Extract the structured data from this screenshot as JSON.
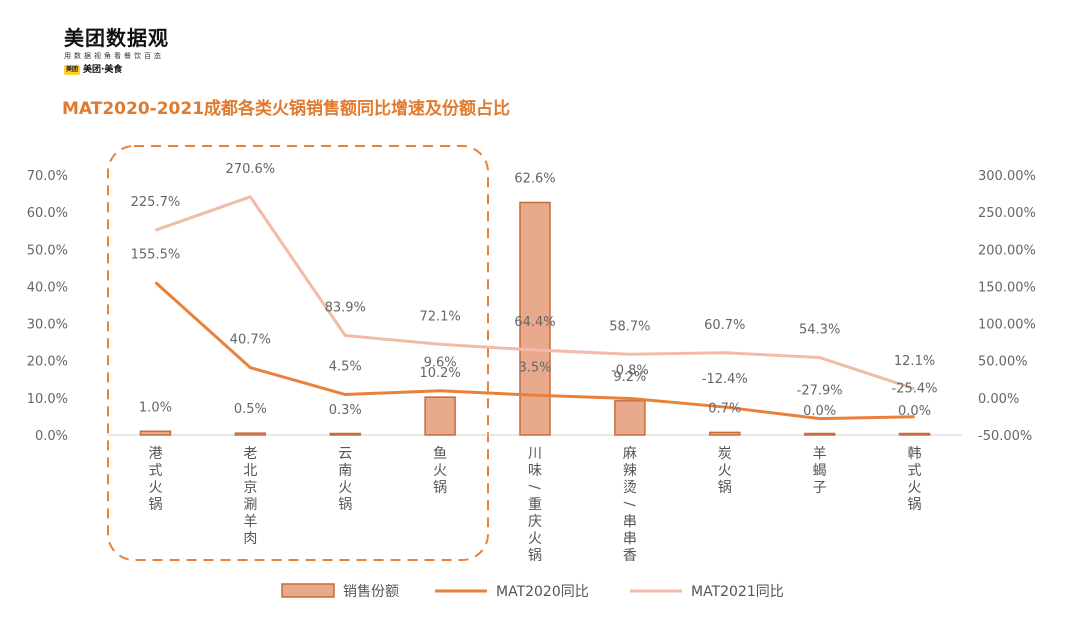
{
  "logo": {
    "title": "美团数据观",
    "subtitle": "用数据视角看餐饮百态",
    "badge": "美团",
    "brand": "美团·美食"
  },
  "chart_title": "MAT2020-2021成都各类火锅销售额同比增速及份额占比",
  "chart_data": {
    "type": "bar",
    "title": "MAT2020-2021成都各类火锅销售额同比增速及份额占比",
    "categories": [
      "港式火锅",
      "老北京涮羊肉",
      "云南火锅",
      "鱼火锅",
      "川味/重庆火锅",
      "麻辣烫/串串香",
      "炭火锅",
      "羊蝎子",
      "韩式火锅"
    ],
    "y_left": {
      "ticks": [
        "0.0%",
        "10.0%",
        "20.0%",
        "30.0%",
        "40.0%",
        "50.0%",
        "60.0%",
        "70.0%"
      ],
      "range": [
        0,
        70
      ]
    },
    "y_right": {
      "ticks": [
        "-50.00%",
        "0.00%",
        "50.00%",
        "100.00%",
        "150.00%",
        "200.00%",
        "250.00%",
        "300.00%"
      ],
      "range": [
        -50,
        300
      ]
    },
    "series": [
      {
        "name": "销售份额",
        "type": "bar",
        "axis": "left",
        "color": "#e8a98c",
        "values": [
          1.0,
          0.5,
          0.3,
          10.2,
          62.6,
          9.2,
          0.7,
          0.0,
          0.0
        ],
        "labels": [
          "1.0%",
          "0.5%",
          "0.3%",
          "10.2%",
          "62.6%",
          "9.2%",
          "0.7%",
          "0.0%",
          "0.0%"
        ]
      },
      {
        "name": "MAT2020同比",
        "type": "line",
        "axis": "right",
        "color": "#e8823a",
        "values": [
          155.5,
          40.7,
          4.5,
          9.6,
          3.5,
          -0.8,
          -12.4,
          -27.9,
          -25.4
        ],
        "labels": [
          "155.5%",
          "40.7%",
          "4.5%",
          "9.6%",
          "3.5%",
          "-0.8%",
          "-12.4%",
          "-27.9%",
          "-25.4%"
        ]
      },
      {
        "name": "MAT2021同比",
        "type": "line",
        "axis": "right",
        "color": "#f2bba6",
        "values": [
          225.7,
          270.6,
          83.9,
          72.1,
          64.4,
          58.7,
          60.7,
          54.3,
          12.1
        ],
        "labels": [
          "225.7%",
          "270.6%",
          "83.9%",
          "72.1%",
          "64.4%",
          "58.7%",
          "60.7%",
          "54.3%",
          "12.1%"
        ]
      }
    ],
    "legend": {
      "position": "bottom",
      "items": [
        "销售份额",
        "MAT2020同比",
        "MAT2021同比"
      ]
    },
    "highlight_box_color": "#e8823a"
  }
}
